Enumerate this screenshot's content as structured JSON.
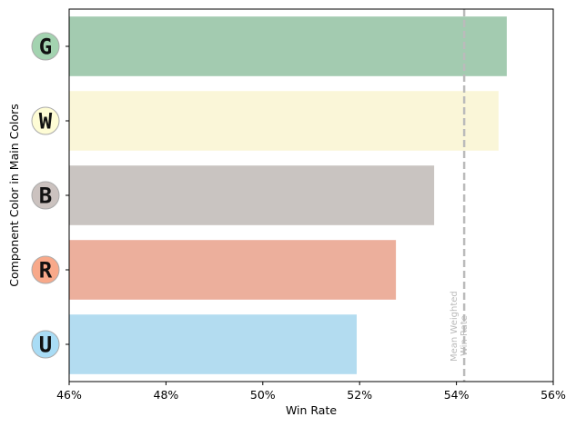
{
  "chart_data": {
    "type": "barh",
    "x_label": "Win Rate",
    "y_label": "Component Color in Main Colors",
    "categories": [
      "G",
      "W",
      "B",
      "R",
      "U"
    ],
    "values": [
      55.04,
      54.87,
      53.54,
      52.75,
      51.94
    ],
    "colors": [
      "#a3cbb0",
      "#faf6d8",
      "#c9c4c1",
      "#ecaf9c",
      "#b3dcf0"
    ],
    "icon_colors": [
      "#a3d3b0",
      "#fefcd5",
      "#cbc2bf",
      "#f8a98a",
      "#a9dcf5"
    ],
    "xlim": [
      46,
      56
    ],
    "xticks": [
      {
        "value": 46,
        "label": "46%"
      },
      {
        "value": 48,
        "label": "48%"
      },
      {
        "value": 50,
        "label": "50%"
      },
      {
        "value": 52,
        "label": "52%"
      },
      {
        "value": 54,
        "label": "54%"
      },
      {
        "value": 56,
        "label": "56%"
      }
    ],
    "reference_line": {
      "value": 54.16,
      "label": "Mean Weighted\nWin Rate",
      "color": "#bbbbbb"
    }
  }
}
